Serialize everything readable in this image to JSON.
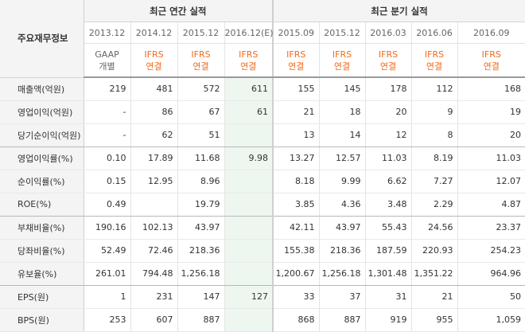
{
  "corner_label": "주요재무정보",
  "groups": {
    "annual": "최근 연간 실적",
    "quarterly": "최근 분기 실적"
  },
  "periods": [
    {
      "label": "2013.12"
    },
    {
      "label": "2014.12"
    },
    {
      "label": "2015.12"
    },
    {
      "label": "2016.12(E)"
    },
    {
      "label": "2015.09"
    },
    {
      "label": "2015.12"
    },
    {
      "label": "2016.03"
    },
    {
      "label": "2016.06"
    },
    {
      "label": "2016.09"
    }
  ],
  "standards": [
    {
      "top": "GAAP",
      "bottom": "개별"
    },
    {
      "top": "IFRS",
      "bottom": "연결"
    },
    {
      "top": "IFRS",
      "bottom": "연결"
    },
    {
      "top": "IFRS",
      "bottom": "연결"
    },
    {
      "top": "IFRS",
      "bottom": "연결"
    },
    {
      "top": "IFRS",
      "bottom": "연결"
    },
    {
      "top": "IFRS",
      "bottom": "연결"
    },
    {
      "top": "IFRS",
      "bottom": "연결"
    },
    {
      "top": "IFRS",
      "bottom": "연결"
    }
  ],
  "rows": [
    {
      "label": "매출액(억원)",
      "values": [
        "219",
        "481",
        "572",
        "611",
        "155",
        "145",
        "178",
        "112",
        "168"
      ]
    },
    {
      "label": "영업이익(억원)",
      "values": [
        "-",
        "86",
        "67",
        "61",
        "21",
        "18",
        "20",
        "9",
        "19"
      ]
    },
    {
      "label": "당기순이익(억원)",
      "values": [
        "-",
        "62",
        "51",
        "",
        "13",
        "14",
        "12",
        "8",
        "20"
      ]
    },
    {
      "label": "영업이익률(%)",
      "values": [
        "0.10",
        "17.89",
        "11.68",
        "9.98",
        "13.27",
        "12.57",
        "11.03",
        "8.19",
        "11.03"
      ]
    },
    {
      "label": "순이익률(%)",
      "values": [
        "0.15",
        "12.95",
        "8.96",
        "",
        "8.18",
        "9.99",
        "6.62",
        "7.27",
        "12.07"
      ]
    },
    {
      "label": "ROE(%)",
      "values": [
        "0.49",
        "",
        "19.79",
        "",
        "3.85",
        "4.36",
        "3.48",
        "2.29",
        "4.87"
      ]
    },
    {
      "label": "부채비율(%)",
      "values": [
        "190.16",
        "102.13",
        "43.97",
        "",
        "42.11",
        "43.97",
        "55.43",
        "24.56",
        "23.37"
      ]
    },
    {
      "label": "당좌비율(%)",
      "values": [
        "52.49",
        "72.46",
        "218.36",
        "",
        "155.38",
        "218.36",
        "187.59",
        "220.93",
        "254.23"
      ]
    },
    {
      "label": "유보율(%)",
      "values": [
        "261.01",
        "794.48",
        "1,256.18",
        "",
        "1,200.67",
        "1,256.18",
        "1,301.48",
        "1,351.22",
        "964.96"
      ]
    },
    {
      "label": "EPS(원)",
      "values": [
        "1",
        "231",
        "147",
        "127",
        "33",
        "37",
        "31",
        "21",
        "50"
      ]
    },
    {
      "label": "BPS(원)",
      "values": [
        "253",
        "607",
        "887",
        "",
        "868",
        "887",
        "919",
        "955",
        "1,059"
      ]
    }
  ]
}
